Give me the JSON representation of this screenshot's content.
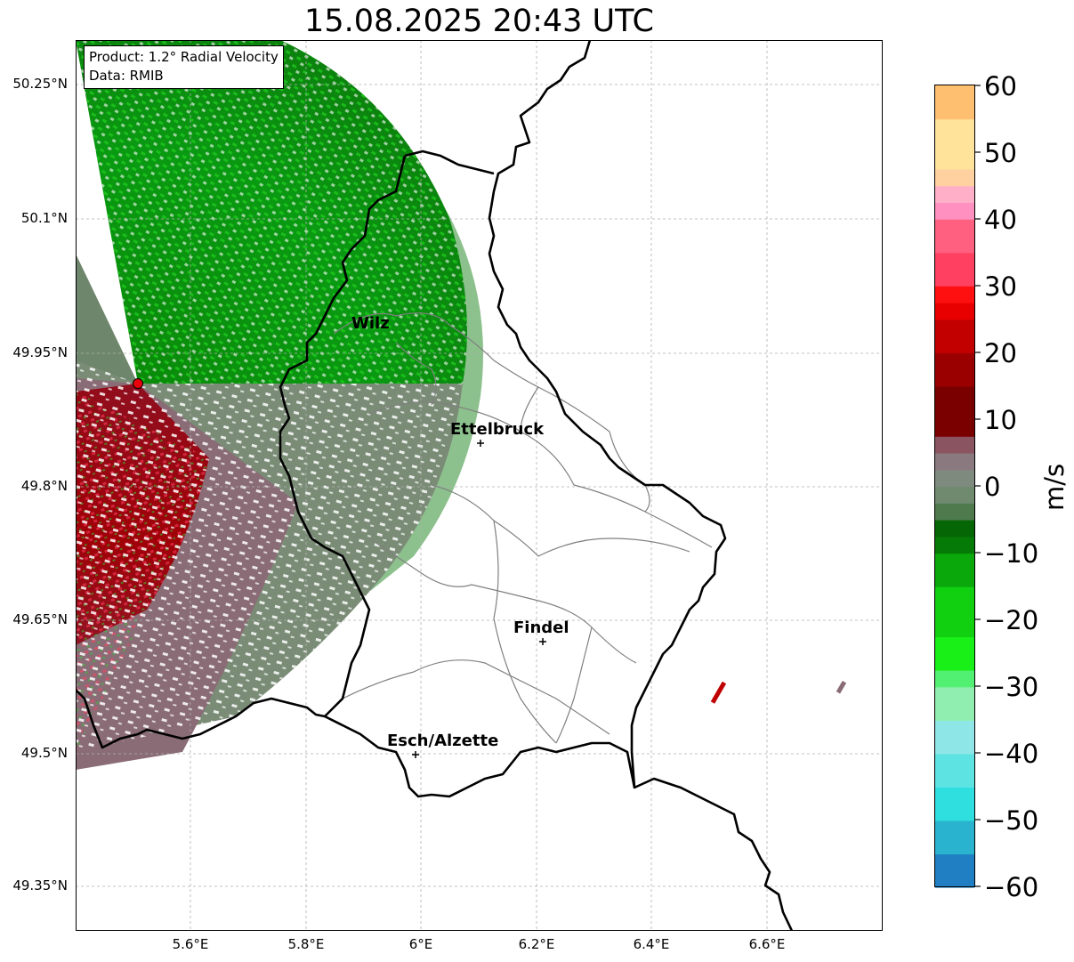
{
  "title": "15.08.2025 20:43 UTC",
  "info": {
    "product": "Product: 1.2° Radial Velocity",
    "data": "Data: RMIB"
  },
  "lat_ticks": [
    "50.25°N",
    "50.1°N",
    "49.95°N",
    "49.8°N",
    "49.65°N",
    "49.5°N",
    "49.35°N"
  ],
  "lon_ticks": [
    "5.6°E",
    "5.8°E",
    "6°E",
    "6.2°E",
    "6.4°E",
    "6.6°E"
  ],
  "places": [
    {
      "name": "Wilz"
    },
    {
      "name": "Ettelbruck"
    },
    {
      "name": "Findel"
    },
    {
      "name": "Esch/Alzette"
    }
  ],
  "colorbar": {
    "unit": "m/s",
    "ticks": [
      "60",
      "50",
      "40",
      "30",
      "20",
      "10",
      "0",
      "−10",
      "−20",
      "−30",
      "−40",
      "−50",
      "−60"
    ],
    "range": [
      -60,
      60
    ]
  },
  "colors": {
    "border": "#000000",
    "canton_lines": "#808080",
    "radar_site": "#e8000b",
    "receding_red": "#8b0000",
    "approaching_green": "#008000",
    "near_zero_gray": "#6b7d6b"
  }
}
